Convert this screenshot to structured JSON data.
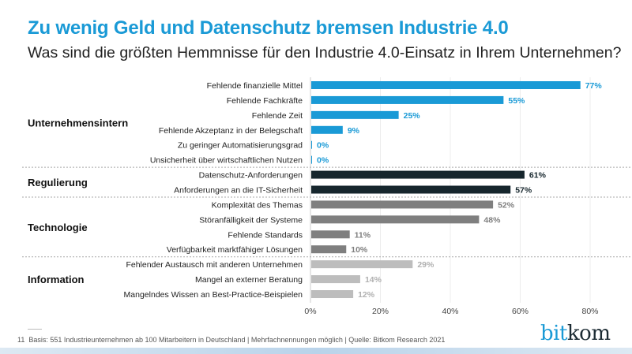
{
  "title": "Zu wenig Geld und Datenschutz bremsen Industrie 4.0",
  "subtitle": "Was sind die größten Hemmnisse für den Industrie 4.0-Einsatz in Ihrem Unternehmen?",
  "footer": {
    "page": "11",
    "text": "Basis: 551 Industrieunternehmen ab 100 Mitarbeitern in Deutschland | Mehrfachnennungen möglich | Quelle: Bitkom Research 2021"
  },
  "logo": {
    "part1": "bit",
    "part2": "kom"
  },
  "chart_data": {
    "type": "bar",
    "orientation": "horizontal",
    "xlim": [
      0,
      80
    ],
    "xticks": [
      "0%",
      "20%",
      "40%",
      "60%",
      "80%"
    ],
    "xtick_values": [
      0,
      20,
      40,
      60,
      80
    ],
    "grid": true,
    "groups": [
      {
        "name": "Unternehmensintern",
        "color": "#1a9ad6",
        "items": [
          {
            "label": "Fehlende finanzielle Mittel",
            "value": 77
          },
          {
            "label": "Fehlende Fachkräfte",
            "value": 55
          },
          {
            "label": "Fehlende Zeit",
            "value": 25
          },
          {
            "label": "Fehlende Akzeptanz in der Belegschaft",
            "value": 9
          },
          {
            "label": "Zu geringer Automatisierungsgrad",
            "value": 0
          },
          {
            "label": "Unsicherheit über wirtschaftlichen Nutzen",
            "value": 0
          }
        ]
      },
      {
        "name": "Regulierung",
        "color": "#16262d",
        "items": [
          {
            "label": "Datenschutz-Anforderungen",
            "value": 61
          },
          {
            "label": "Anforderungen an die IT-Sicherheit",
            "value": 57
          }
        ]
      },
      {
        "name": "Technologie",
        "color": "#7f7f7f",
        "items": [
          {
            "label": "Komplexität des Themas",
            "value": 52
          },
          {
            "label": "Störanfälligkeit der Systeme",
            "value": 48
          },
          {
            "label": "Fehlende Standards",
            "value": 11
          },
          {
            "label": "Verfügbarkeit marktfähiger Lösungen",
            "value": 10
          }
        ]
      },
      {
        "name": "Information",
        "color": "#bdbdbd",
        "items": [
          {
            "label": "Fehlender Austausch mit anderen Unternehmen",
            "value": 29
          },
          {
            "label": "Mangel an externer Beratung",
            "value": 14
          },
          {
            "label": "Mangelndes Wissen an Best-Practice-Beispielen",
            "value": 12
          }
        ]
      }
    ]
  }
}
